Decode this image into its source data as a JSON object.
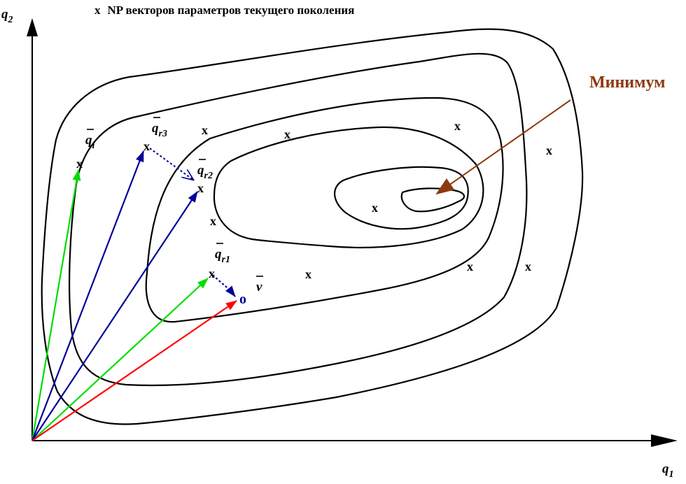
{
  "legend": {
    "marker": "x",
    "text": "NP векторов параметров текущего поколения"
  },
  "axes": {
    "x_label": "q",
    "x_sub": "1",
    "y_label": "q",
    "y_sub": "2"
  },
  "labels": {
    "qi": {
      "base": "q",
      "sub": "i"
    },
    "qr1": {
      "base": "q",
      "sub": "r1"
    },
    "qr2": {
      "base": "q",
      "sub": "r2"
    },
    "qr3": {
      "base": "q",
      "sub": "r3"
    },
    "v": {
      "base": "v"
    }
  },
  "minimum_label": "Минимум",
  "trial_marker": "o",
  "population_marker": "x",
  "colors": {
    "contour": "#000000",
    "green_arrow": "#00dd00",
    "blue_arrow": "#000099",
    "red_arrow": "#ff0000",
    "difference_arrow": "#000099",
    "minimum": "#8b3a0f"
  }
}
